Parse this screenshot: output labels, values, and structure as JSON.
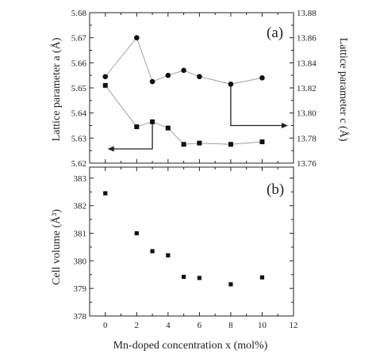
{
  "chart_data": [
    {
      "type": "line",
      "panel_label": "(a)",
      "ylabel_left": "Lattice parameter a (Å)",
      "ylabel_right": "Lattice parameter c (Å)",
      "ylim_left": [
        5.62,
        5.68
      ],
      "ylim_right": [
        13.76,
        13.88
      ],
      "yticks_left": [
        "5.62",
        "5.63",
        "5.64",
        "5.65",
        "5.66",
        "5.67",
        "5.68"
      ],
      "yticks_right": [
        "13.76",
        "13.78",
        "13.80",
        "13.82",
        "13.84",
        "13.86",
        "13.88"
      ],
      "xlim": [
        -1,
        12
      ],
      "grid": false,
      "series": [
        {
          "marker": "square",
          "axis": "left",
          "color": "#111111",
          "line_color": "#9a9a9a",
          "x": [
            0,
            2,
            3,
            4,
            5,
            6,
            8,
            10
          ],
          "values": [
            5.651,
            5.6345,
            5.6365,
            5.634,
            5.6275,
            5.628,
            5.6275,
            5.6285
          ]
        },
        {
          "marker": "circle",
          "axis": "right",
          "color": "#111111",
          "line_color": "#9a9a9a",
          "x": [
            0,
            2,
            3,
            4,
            5,
            6,
            8,
            10
          ],
          "values": [
            13.829,
            13.86,
            13.825,
            13.83,
            13.834,
            13.829,
            13.823,
            13.828
          ]
        }
      ]
    },
    {
      "type": "scatter",
      "panel_label": "(b)",
      "xlabel": "Mn-doped concentration x (mol%)",
      "ylabel": "Cell volume (Å³)",
      "xlim": [
        -1,
        12
      ],
      "ylim": [
        378,
        383.4
      ],
      "xticks": [
        "0",
        "2",
        "4",
        "6",
        "8",
        "10",
        "12"
      ],
      "yticks": [
        "378",
        "379",
        "380",
        "381",
        "382",
        "383"
      ],
      "grid": false,
      "series": [
        {
          "marker": "square",
          "color": "#111111",
          "x": [
            0,
            2,
            3,
            4,
            5,
            6,
            8,
            10
          ],
          "values": [
            382.45,
            381.0,
            380.35,
            380.2,
            379.42,
            379.38,
            379.15,
            379.4
          ]
        }
      ]
    }
  ]
}
